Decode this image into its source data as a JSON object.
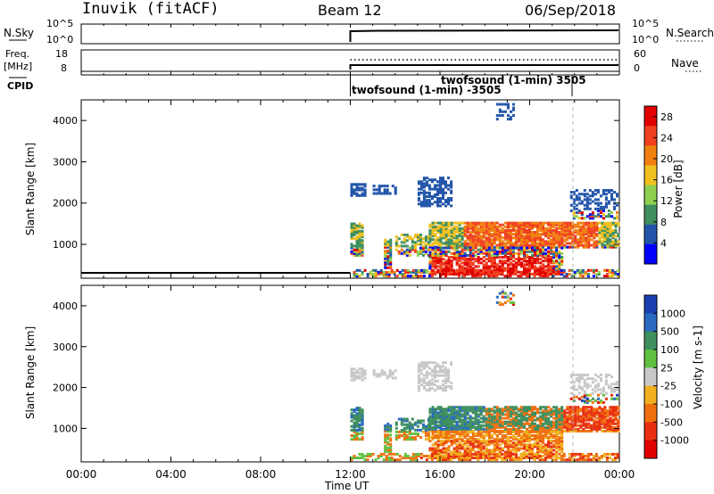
{
  "header": {
    "station": "Inuvik (fitACF)",
    "beam": "Beam 12",
    "date": "06/Sep/2018"
  },
  "side_labels": {
    "nsky": "N.Sky",
    "freq_top": "Freq.",
    "freq_bot": "[MHz]",
    "cpid": "CPID",
    "nsearch": "N.Search",
    "nave": "Nave"
  },
  "param_ticks": {
    "nsky_left_top": "10^5",
    "nsky_left_bot": "10^0",
    "nsky_right_top": "10^5",
    "nsky_right_bot": "10^0",
    "freq_left_top": "18",
    "freq_left_bot": "8",
    "nave_right_top": "60",
    "nave_right_bot": "0"
  },
  "cpid_labels": {
    "upper": "twofsound (1-min) 3505",
    "lower": "twofsound (1-min) -3505"
  },
  "chart_data": [
    {
      "type": "heatmap",
      "panel": "power",
      "ylabel": "Slant Range [km]",
      "yticks": [
        "1000",
        "2000",
        "3000",
        "4000"
      ],
      "ylim": [
        180,
        4500
      ],
      "colorbar": {
        "label": "Power [dB]",
        "ticks": [
          "4",
          "8",
          "12",
          "16",
          "20",
          "24",
          "28"
        ],
        "range": [
          0,
          30
        ],
        "colors": [
          "#0000ff",
          "#2255aa",
          "#3f8f5f",
          "#90d050",
          "#f0c020",
          "#f08010",
          "#f04020",
          "#e00000"
        ]
      }
    },
    {
      "type": "heatmap",
      "panel": "velocity",
      "ylabel": "Slant Range [km]",
      "yticks": [
        "1000",
        "2000",
        "3000",
        "4000"
      ],
      "ylim": [
        180,
        4500
      ],
      "colorbar": {
        "label": "Velocity [m s-1]",
        "ticks": [
          "1000",
          "500",
          "100",
          "25",
          "-25",
          "-100",
          "-500",
          "-1000"
        ],
        "colors": [
          "#1a3fb0",
          "#2a6ac0",
          "#3f8f5f",
          "#60c040",
          "#c8c8c8",
          "#f0b020",
          "#f07010",
          "#e83010",
          "#e00000"
        ]
      }
    }
  ],
  "time_axis": {
    "label": "Time UT",
    "ticks": [
      "00:00",
      "04:00",
      "08:00",
      "12:00",
      "16:00",
      "20:00",
      "00:00"
    ],
    "range_hours": [
      0,
      24
    ],
    "data_start_hour": 12
  }
}
